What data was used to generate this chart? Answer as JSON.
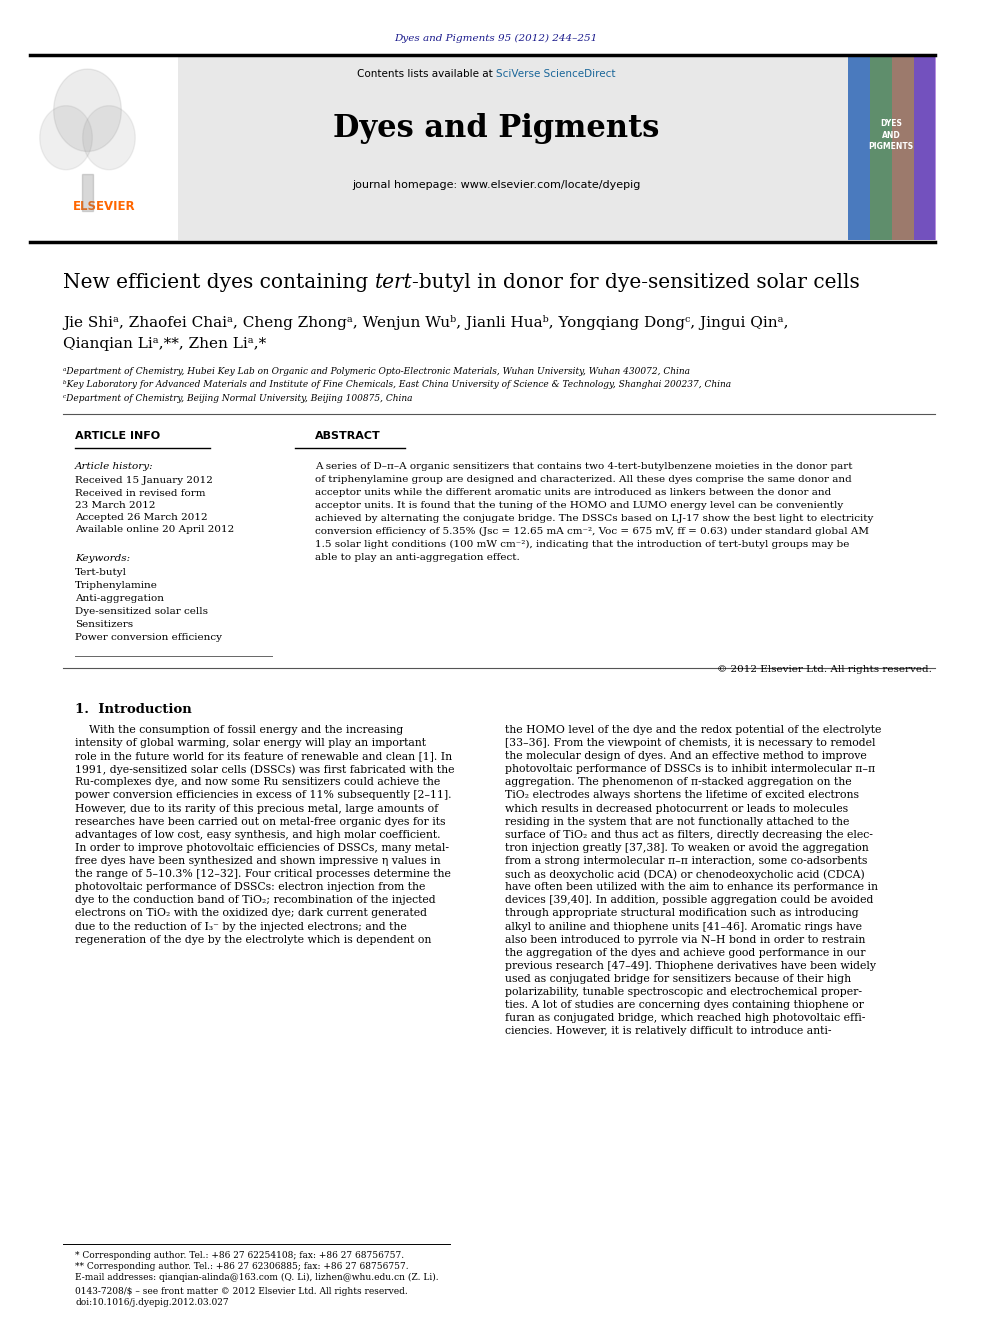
{
  "page_width": 9.92,
  "page_height": 13.23,
  "background_color": "#ffffff",
  "journal_ref": "Dyes and Pigments 95 (2012) 244–251",
  "journal_ref_color": "#1a1a8c",
  "header_bg": "#e8e8e8",
  "sciverse_color": "#1a6699",
  "journal_title": "Dyes and Pigments",
  "journal_homepage": "journal homepage: www.elsevier.com/locate/dyepig",
  "paper_title_part1": "New efficient dyes containing ",
  "paper_title_italic": "tert",
  "paper_title_part2": "-butyl in donor for dye-sensitized solar cells",
  "affiliation_a": "ᵃDepartment of Chemistry, Hubei Key Lab on Organic and Polymeric Opto-Electronic Materials, Wuhan University, Wuhan 430072, China",
  "affiliation_b": "ᵇKey Laboratory for Advanced Materials and Institute of Fine Chemicals, East China University of Science & Technology, Shanghai 200237, China",
  "affiliation_c": "ᶜDepartment of Chemistry, Beijing Normal University, Beijing 100875, China",
  "article_info_title": "ARTICLE INFO",
  "abstract_title": "ABSTRACT",
  "received": "Received 15 January 2012",
  "accepted": "Accepted 26 March 2012",
  "available": "Available online 20 April 2012",
  "keywords": [
    "Tert-butyl",
    "Triphenylamine",
    "Anti-aggregation",
    "Dye-sensitized solar cells",
    "Sensitizers",
    "Power conversion efficiency"
  ],
  "copyright": "© 2012 Elsevier Ltd. All rights reserved.",
  "intro_title": "1.  Introduction",
  "footer_text1": "* Corresponding author. Tel.: +86 27 62254108; fax: +86 27 68756757.",
  "footer_text2": "** Corresponding author. Tel.: +86 27 62306885; fax: +86 27 68756757.",
  "footer_text3": "E-mail addresses: qianqian-alinda@163.com (Q. Li), lizhen@whu.edu.cn (Z. Li).",
  "footer_issn": "0143-7208/$ – see front matter © 2012 Elsevier Ltd. All rights reserved.",
  "footer_doi": "doi:10.1016/j.dyepig.2012.03.027",
  "intro_col1_lines": [
    "    With the consumption of fossil energy and the increasing",
    "intensity of global warming, solar energy will play an important",
    "role in the future world for its feature of renewable and clean [1]. In",
    "1991, dye-sensitized solar cells (DSSCs) was first fabricated with the",
    "Ru-complexes dye, and now some Ru sensitizers could achieve the",
    "power conversion efficiencies in excess of 11% subsequently [2–11].",
    "However, due to its rarity of this precious metal, large amounts of",
    "researches have been carried out on metal-free organic dyes for its",
    "advantages of low cost, easy synthesis, and high molar coefficient.",
    "In order to improve photovoltaic efficiencies of DSSCs, many metal-",
    "free dyes have been synthesized and shown impressive η values in",
    "the range of 5–10.3% [12–32]. Four critical processes determine the",
    "photovoltaic performance of DSSCs: electron injection from the",
    "dye to the conduction band of TiO₂; recombination of the injected",
    "electrons on TiO₂ with the oxidized dye; dark current generated",
    "due to the reduction of I₃⁻ by the injected electrons; and the",
    "regeneration of the dye by the electrolyte which is dependent on"
  ],
  "intro_col2_lines": [
    "the HOMO level of the dye and the redox potential of the electrolyte",
    "[33–36]. From the viewpoint of chemists, it is necessary to remodel",
    "the molecular design of dyes. And an effective method to improve",
    "photovoltaic performance of DSSCs is to inhibit intermolecular π–π",
    "aggregation. The phenomenon of π-stacked aggregation on the",
    "TiO₂ electrodes always shortens the lifetime of excited electrons",
    "which results in decreased photocurrent or leads to molecules",
    "residing in the system that are not functionally attached to the",
    "surface of TiO₂ and thus act as filters, directly decreasing the elec-",
    "tron injection greatly [37,38]. To weaken or avoid the aggregation",
    "from a strong intermolecular π–π interaction, some co-adsorbents",
    "such as deoxycholic acid (DCA) or chenodeoxycholic acid (CDCA)",
    "have often been utilized with the aim to enhance its performance in",
    "devices [39,40]. In addition, possible aggregation could be avoided",
    "through appropriate structural modification such as introducing",
    "alkyl to aniline and thiophene units [41–46]. Aromatic rings have",
    "also been introduced to pyrrole via N–H bond in order to restrain",
    "the aggregation of the dyes and achieve good performance in our",
    "previous research [47–49]. Thiophene derivatives have been widely",
    "used as conjugated bridge for sensitizers because of their high",
    "polarizability, tunable spectroscopic and electrochemical proper-",
    "ties. A lot of studies are concerning dyes containing thiophene or",
    "furan as conjugated bridge, which reached high photovoltaic effi-",
    "ciencies. However, it is relatively difficult to introduce anti-"
  ],
  "abstract_lines": [
    "A series of D–π–A organic sensitizers that contains two 4-tert-butylbenzene moieties in the donor part",
    "of triphenylamine group are designed and characterized. All these dyes comprise the same donor and",
    "acceptor units while the different aromatic units are introduced as linkers between the donor and",
    "acceptor units. It is found that the tuning of the HOMO and LUMO energy level can be conveniently",
    "achieved by alternating the conjugate bridge. The DSSCs based on LJ-17 show the best light to electricity",
    "conversion efficiency of 5.35% (Jsc = 12.65 mA cm⁻², Voc = 675 mV, ff = 0.63) under standard global AM",
    "1.5 solar light conditions (100 mW cm⁻²), indicating that the introduction of tert-butyl groups may be",
    "able to play an anti-aggregation effect."
  ]
}
